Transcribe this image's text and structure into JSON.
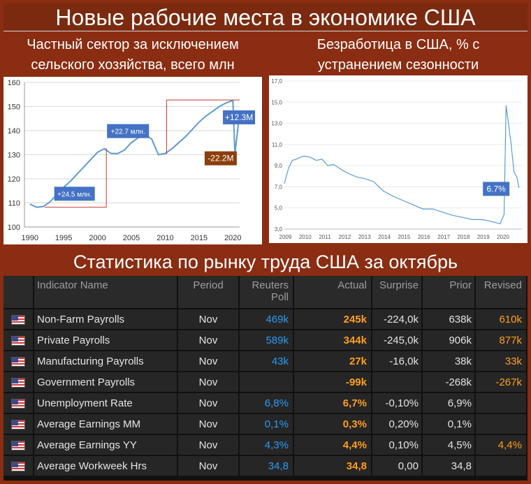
{
  "header": {
    "title": "Новые рабочие места в экономике США",
    "left_sub_1": "Частный сектор за исключением",
    "left_sub_2": "сельского хозяйства, всего млн",
    "right_sub_1": "Безработица в США, % с",
    "right_sub_2": "устранением сезонности",
    "section_title": "Статистика по рынку труда США за октябрь"
  },
  "colors": {
    "background": "#8a2d12",
    "line": "#5b9bd5",
    "label_blue": "#4472c4",
    "label_brown": "#8a3f0c",
    "actual_orange": "#ff9f1c",
    "poll_blue": "#2b9af3"
  },
  "chart_data": [
    {
      "type": "line",
      "x": [
        1990,
        1991,
        1992,
        1993,
        1994,
        1995,
        1996,
        1997,
        1998,
        1999,
        2000,
        2001,
        2002,
        2003,
        2004,
        2005,
        2006,
        2007,
        2008,
        2009,
        2010,
        2011,
        2012,
        2013,
        2014,
        2015,
        2016,
        2017,
        2018,
        2019,
        2020,
        2020.3,
        2020.8
      ],
      "values": [
        109.5,
        108.2,
        108.5,
        110.5,
        113.5,
        116.5,
        119.0,
        122.0,
        125.0,
        128.0,
        131.0,
        132.5,
        130.5,
        130.5,
        132.0,
        135.0,
        137.0,
        138.3,
        136.5,
        130.0,
        130.5,
        132.5,
        135.0,
        137.5,
        140.5,
        143.5,
        146.0,
        148.0,
        150.0,
        151.5,
        152.5,
        130.3,
        142.6
      ],
      "ylim": [
        100,
        160
      ],
      "yticks": [
        100,
        110,
        120,
        130,
        140,
        150,
        160
      ],
      "xticks": [
        1990,
        1995,
        2000,
        2005,
        2010,
        2015,
        2020
      ],
      "annotations": [
        "+24.5 млн.",
        "+22.7 млн.",
        "+12.3M",
        "-22.2M"
      ]
    },
    {
      "type": "line",
      "x": [
        2009.0,
        2009.2,
        2009.4,
        2009.6,
        2009.8,
        2010.0,
        2010.3,
        2010.6,
        2010.9,
        2011.2,
        2011.5,
        2011.9,
        2012.3,
        2012.7,
        2013.0,
        2013.5,
        2014.0,
        2014.5,
        2015.0,
        2015.5,
        2016.0,
        2016.5,
        2017.0,
        2017.5,
        2018.0,
        2018.5,
        2019.0,
        2019.5,
        2019.9,
        2020.1,
        2020.2,
        2020.3,
        2020.45,
        2020.6,
        2020.75,
        2020.85
      ],
      "values": [
        7.3,
        8.7,
        9.5,
        9.6,
        9.8,
        9.9,
        9.8,
        9.5,
        9.6,
        9.0,
        9.1,
        8.6,
        8.2,
        7.9,
        7.8,
        7.5,
        6.6,
        6.1,
        5.7,
        5.3,
        4.9,
        4.9,
        4.6,
        4.3,
        4.1,
        3.9,
        3.9,
        3.7,
        3.5,
        4.4,
        14.7,
        13.3,
        11.1,
        8.4,
        7.9,
        6.9
      ],
      "ylim": [
        3.0,
        17.0
      ],
      "yticks": [
        "3,0",
        "5,0",
        "7,0",
        "9,0",
        "11,0",
        "13,0",
        "15,0",
        "17,0"
      ],
      "xticks": [
        2009,
        2010,
        2011,
        2012,
        2013,
        2014,
        2015,
        2016,
        2017,
        2018,
        2019,
        2020
      ],
      "annotations": [
        "6.7%"
      ]
    }
  ],
  "table": {
    "headers": [
      "Indicator Name",
      "Period",
      "Reuters Poll",
      "Actual",
      "Surprise",
      "Prior",
      "Revised"
    ],
    "rows": [
      {
        "name": "Non-Farm Payrolls",
        "period": "Nov",
        "poll": "469k",
        "actual": "245k",
        "surprise": "-224,0k",
        "prior": "638k",
        "revised": "610k"
      },
      {
        "name": "Private Payrolls",
        "period": "Nov",
        "poll": "589k",
        "actual": "344k",
        "surprise": "-245,0k",
        "prior": "906k",
        "revised": "877k"
      },
      {
        "name": "Manufacturing Payrolls",
        "period": "Nov",
        "poll": "43k",
        "actual": "27k",
        "surprise": "-16,0k",
        "prior": "38k",
        "revised": "33k"
      },
      {
        "name": "Government Payrolls",
        "period": "Nov",
        "poll": "",
        "actual": "-99k",
        "surprise": "",
        "prior": "-268k",
        "revised": "-267k"
      },
      {
        "name": "Unemployment Rate",
        "period": "Nov",
        "poll": "6,8%",
        "actual": "6,7%",
        "surprise": "-0,10%",
        "prior": "6,9%",
        "revised": ""
      },
      {
        "name": "Average Earnings MM",
        "period": "Nov",
        "poll": "0,1%",
        "actual": "0,3%",
        "surprise": "0,20%",
        "prior": "0,1%",
        "revised": ""
      },
      {
        "name": "Average Earnings YY",
        "period": "Nov",
        "poll": "4,3%",
        "actual": "4,4%",
        "surprise": "0,10%",
        "prior": "4,5%",
        "revised": "4,4%"
      },
      {
        "name": "Average Workweek Hrs",
        "period": "Nov",
        "poll": "34,8",
        "actual": "34,8",
        "surprise": "0,00",
        "prior": "34,8",
        "revised": ""
      }
    ]
  }
}
